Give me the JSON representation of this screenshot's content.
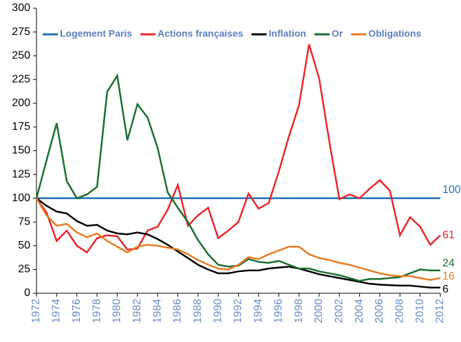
{
  "chart_data": {
    "type": "line",
    "x": [
      1972,
      1973,
      1974,
      1975,
      1976,
      1977,
      1978,
      1979,
      1980,
      1981,
      1982,
      1983,
      1984,
      1985,
      1986,
      1987,
      1988,
      1989,
      1990,
      1991,
      1992,
      1993,
      1994,
      1995,
      1996,
      1997,
      1998,
      1999,
      2000,
      2001,
      2002,
      2003,
      2004,
      2005,
      2006,
      2007,
      2008,
      2009,
      2010,
      2011,
      2012
    ],
    "xlim": [
      1972,
      2012
    ],
    "xticks": [
      1972,
      1974,
      1976,
      1978,
      1980,
      1982,
      1984,
      1986,
      1988,
      1990,
      1992,
      1994,
      1996,
      1998,
      2000,
      2002,
      2004,
      2006,
      2008,
      2010,
      2012
    ],
    "ylim": [
      0,
      300
    ],
    "yticks": [
      0,
      25,
      50,
      75,
      100,
      125,
      150,
      175,
      200,
      225,
      250,
      275,
      300
    ],
    "grid": false,
    "legend": "top",
    "series": [
      {
        "name": "Logement Paris",
        "color": "#1f6fb5",
        "values": [
          100,
          100,
          100,
          100,
          100,
          100,
          100,
          100,
          100,
          100,
          100,
          100,
          100,
          100,
          100,
          100,
          100,
          100,
          100,
          100,
          100,
          100,
          100,
          100,
          100,
          100,
          100,
          100,
          100,
          100,
          100,
          100,
          100,
          100,
          100,
          100,
          100,
          100,
          100,
          100,
          100
        ]
      },
      {
        "name": "Actions françaises",
        "color": "#e8262a",
        "values": [
          100,
          85,
          55,
          66,
          50,
          43,
          58,
          61,
          60,
          46,
          47,
          66,
          70,
          88,
          114,
          71,
          82,
          90,
          58,
          66,
          75,
          105,
          89,
          95,
          128,
          165,
          198,
          262,
          226,
          160,
          99,
          104,
          100,
          110,
          119,
          108,
          61,
          80,
          70,
          51,
          61
        ]
      },
      {
        "name": "Inflation",
        "color": "#000000",
        "values": [
          100,
          92,
          86,
          84,
          76,
          71,
          72,
          66,
          63,
          62,
          64,
          62,
          57,
          51,
          44,
          37,
          30,
          25,
          21,
          21,
          23,
          24,
          24,
          26,
          27,
          28,
          26,
          23,
          20,
          18,
          16,
          14,
          12,
          10,
          9,
          8.5,
          8,
          8,
          7,
          6,
          6
        ]
      },
      {
        "name": "Or",
        "color": "#1a6e2e",
        "values": [
          100,
          140,
          179,
          118,
          100,
          104,
          112,
          212,
          229,
          161,
          199,
          185,
          153,
          106,
          90,
          75,
          56,
          41,
          30,
          28,
          29,
          36,
          33,
          32,
          34,
          30,
          26,
          26,
          23,
          21,
          19,
          16,
          13,
          15,
          15,
          16,
          17,
          21,
          25,
          24,
          24
        ]
      },
      {
        "name": "Obligations",
        "color": "#e87b22",
        "values": [
          100,
          82,
          71,
          73,
          64,
          59,
          63,
          55,
          49,
          43,
          49,
          51,
          50,
          48,
          46,
          41,
          35,
          30,
          26,
          25,
          30,
          38,
          36,
          41,
          45,
          49,
          49,
          41,
          37,
          35,
          32,
          30,
          27,
          24,
          21,
          19,
          18,
          18,
          16,
          14,
          16
        ]
      }
    ]
  }
}
